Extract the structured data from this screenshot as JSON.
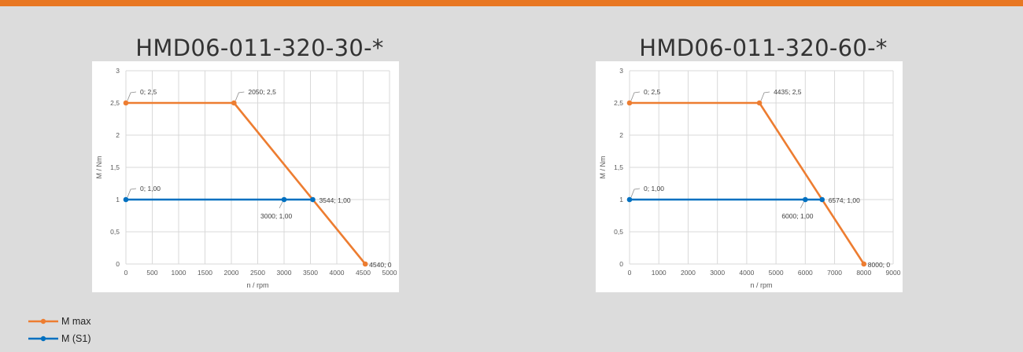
{
  "colors": {
    "max": "#ed7d31",
    "s1": "#0070c0",
    "accent_bar": "#e87722"
  },
  "chart_data": [
    {
      "type": "line",
      "title": "HMD06-011-320-30-*",
      "xlabel": "n / rpm",
      "ylabel": "M / Nm",
      "xlim": [
        0,
        5000
      ],
      "ylim": [
        0,
        3
      ],
      "xticks": [
        "0",
        "500",
        "1000",
        "1500",
        "2000",
        "2500",
        "3000",
        "3500",
        "4000",
        "4500",
        "5000"
      ],
      "yticks": [
        "0",
        "0,5",
        "1",
        "1,5",
        "2",
        "2,5",
        "3"
      ],
      "grid": true,
      "series": [
        {
          "name": "M max",
          "points": [
            [
              0,
              2.5
            ],
            [
              2050,
              2.5
            ],
            [
              4540,
              0
            ]
          ],
          "labels": [
            "0; 2,5",
            "2050; 2,5",
            "4540; 0"
          ]
        },
        {
          "name": "M (S1)",
          "points": [
            [
              0,
              1.0
            ],
            [
              3000,
              1.0
            ],
            [
              3544,
              1.0
            ]
          ],
          "labels": [
            "0; 1,00",
            "3000; 1,00",
            "3544; 1,00"
          ]
        }
      ]
    },
    {
      "type": "line",
      "title": "HMD06-011-320-60-*",
      "xlabel": "n / rpm",
      "ylabel": "M / Nm",
      "xlim": [
        0,
        9000
      ],
      "ylim": [
        0,
        3
      ],
      "xticks": [
        "0",
        "1000",
        "2000",
        "3000",
        "4000",
        "5000",
        "6000",
        "7000",
        "8000",
        "9000"
      ],
      "yticks": [
        "0",
        "0,5",
        "1",
        "1,5",
        "2",
        "2,5",
        "3"
      ],
      "grid": true,
      "series": [
        {
          "name": "M max",
          "points": [
            [
              0,
              2.5
            ],
            [
              4435,
              2.5
            ],
            [
              8000,
              0
            ]
          ],
          "labels": [
            "0; 2,5",
            "4435; 2,5",
            "8000; 0"
          ]
        },
        {
          "name": "M (S1)",
          "points": [
            [
              0,
              1.0
            ],
            [
              6000,
              1.0
            ],
            [
              6574,
              1.0
            ]
          ],
          "labels": [
            "0; 1,00",
            "6000; 1,00",
            "6574; 1,00"
          ]
        }
      ]
    }
  ],
  "legend": [
    {
      "label": "M max",
      "series": "max"
    },
    {
      "label": "M (S1)",
      "series": "s1"
    }
  ]
}
